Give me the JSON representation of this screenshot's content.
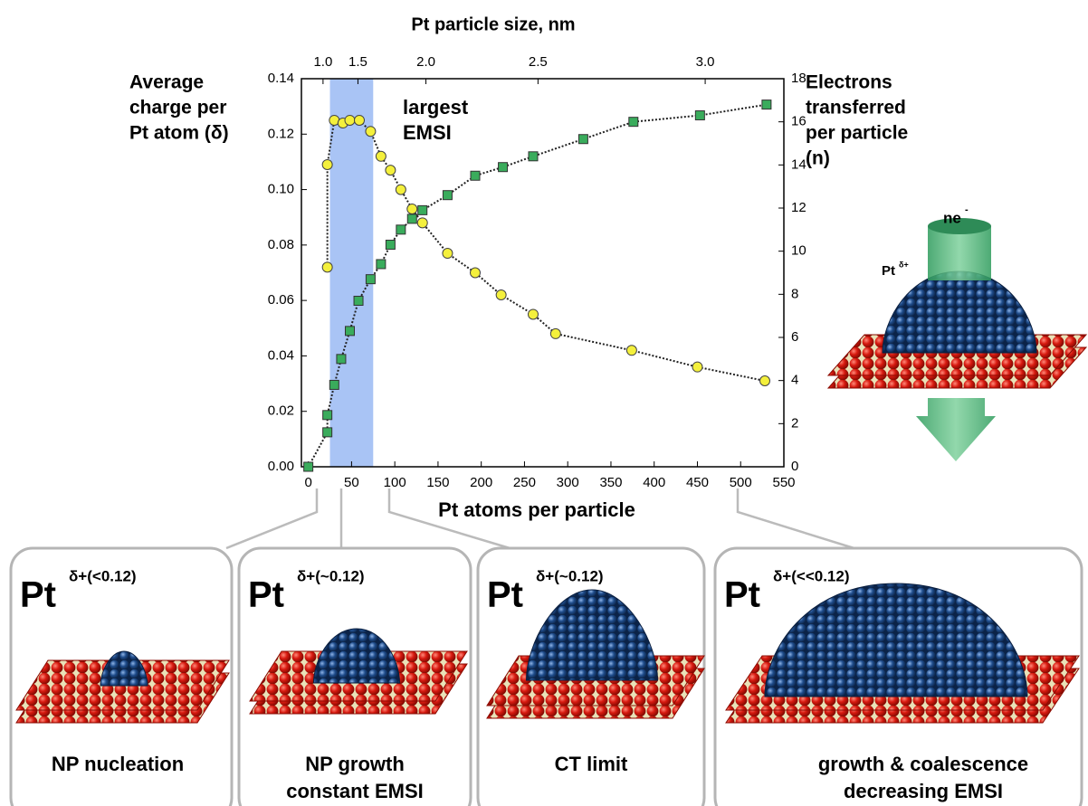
{
  "chart_data": {
    "type": "line",
    "x2label": "Pt particle size, nm",
    "xlabel": "Pt atoms per particle",
    "ylabel": [
      "Average",
      "charge per",
      "Pt atom (δ)"
    ],
    "y2label": [
      "Electrons",
      "transferred",
      "per particle",
      "(n)"
    ],
    "annotation": [
      "largest",
      "EMSI"
    ],
    "highlight": [
      25,
      75
    ],
    "xlim": [
      -8,
      550
    ],
    "xticks": [
      0,
      50,
      100,
      150,
      200,
      250,
      300,
      350,
      400,
      450,
      500,
      550
    ],
    "x2ticks": [
      {
        "value": 1.0,
        "label": "1.0"
      },
      1.5,
      {
        "value": 2.0,
        "label": "2.0"
      },
      2.5,
      {
        "value": 3.0,
        "label": "3.0"
      }
    ],
    "ylim": [
      0,
      0.14
    ],
    "yticks": [
      {
        "value": 0,
        "label": "0.00"
      },
      0.02,
      0.04,
      0.06,
      0.08,
      {
        "value": 0.1,
        "label": "0.10"
      },
      0.12,
      0.14
    ],
    "y2lim": [
      0,
      18
    ],
    "y2ticks": [
      0,
      2,
      4,
      6,
      8,
      10,
      12,
      14,
      16,
      18
    ],
    "series": [
      {
        "color": "#f4f03c",
        "marker": "circle",
        "axis": "y",
        "x": [
          22,
          22,
          30,
          40,
          48,
          59,
          72,
          84,
          95,
          107,
          120,
          132,
          161,
          193,
          223,
          260,
          286,
          374,
          450,
          528
        ],
        "values": [
          0.072,
          0.109,
          0.125,
          0.124,
          0.125,
          0.125,
          0.121,
          0.112,
          0.107,
          0.1,
          0.093,
          0.088,
          0.077,
          0.07,
          0.062,
          0.055,
          0.048,
          0.042,
          0.036,
          0.031
        ]
      },
      {
        "color": "#3aac5c",
        "marker": "square",
        "axis": "y2",
        "x": [
          0,
          22,
          22,
          30,
          38,
          48,
          58,
          72,
          84,
          95,
          107,
          120,
          132,
          161,
          193,
          225,
          260,
          318,
          376,
          453,
          530
        ],
        "values": [
          0,
          1.6,
          2.4,
          3.8,
          5.0,
          6.3,
          7.7,
          8.7,
          9.4,
          10.3,
          11.0,
          11.5,
          11.9,
          12.6,
          13.5,
          13.9,
          14.4,
          15.2,
          16.0,
          16.3,
          16.8
        ]
      }
    ]
  },
  "illustration": {
    "electron_base": "ne",
    "electron_sup": "-",
    "pt_base": "Pt",
    "pt_sup": "δ+"
  },
  "panels": [
    {
      "base": "Pt",
      "sup": "δ+(<0.12)",
      "caption": [
        "NP nucleation"
      ]
    },
    {
      "base": "Pt",
      "sup": "δ+(~0.12)",
      "caption": [
        "NP growth",
        "constant EMSI"
      ]
    },
    {
      "base": "Pt",
      "sup": "δ+(~0.12)",
      "caption": [
        "CT limit"
      ]
    },
    {
      "base": "Pt",
      "sup": "δ+(<<0.12)",
      "caption": [
        "growth & coalescence",
        "decreasing EMSI"
      ]
    }
  ]
}
